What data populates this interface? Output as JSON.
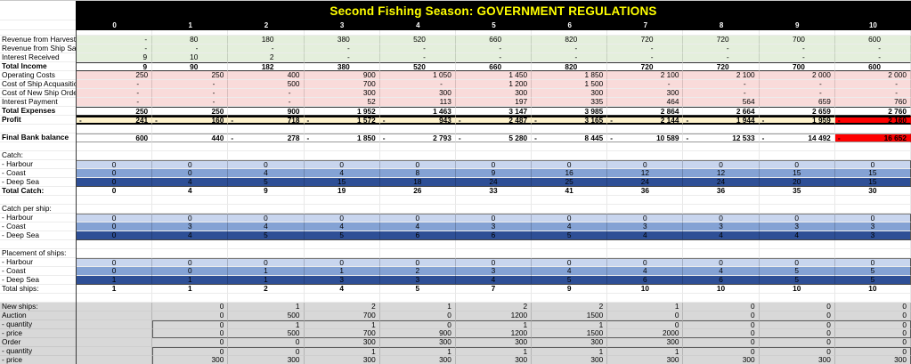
{
  "header": {
    "title": "Second Fishing Season: GOVERNMENT REGULATIONS",
    "columns": [
      "0",
      "1",
      "2",
      "3",
      "4",
      "5",
      "6",
      "7",
      "8",
      "9",
      "10"
    ]
  },
  "colors": {
    "header_bg": "#000000",
    "title_text": "#ffff00",
    "income_green": "#e4efdc",
    "expense_pink": "#f9dbda",
    "profit_yellow": "#fef2cb",
    "alert_red": "#fe0000",
    "harbour_blue": "#c8d5ee",
    "coast_blue": "#84a2d4",
    "deep_sea_blue": "#2e4f96",
    "purchase_grey": "#d8d8d8"
  },
  "sheet": {
    "rows": [
      {
        "name": "column-numbers",
        "style": "colhead",
        "label": "",
        "values": [
          "0",
          "1",
          "2",
          "3",
          "4",
          "5",
          "6",
          "7",
          "8",
          "9",
          "10"
        ]
      },
      {
        "name": "spacer-top",
        "style": "blanksm",
        "label": ""
      },
      {
        "name": "revenue-from-harvest",
        "style": "green",
        "label": "Revenue from Harvest",
        "values": [
          "-",
          "80",
          "180",
          "380",
          "520",
          "660",
          "820",
          "720",
          "720",
          "700",
          "600"
        ]
      },
      {
        "name": "revenue-from-ship-sales",
        "style": "green",
        "label": "Revenue from Ship Sales",
        "values": [
          "-",
          "-",
          "-",
          "-",
          "-",
          "-",
          "-",
          "-",
          "-",
          "-",
          "-"
        ]
      },
      {
        "name": "interest-received",
        "style": "green",
        "label": "Interest Received",
        "values": [
          "9",
          "10",
          "2",
          "-",
          "-",
          "-",
          "-",
          "-",
          "-",
          "-",
          "-"
        ]
      },
      {
        "name": "total-income",
        "style": "total",
        "label": "Total Income",
        "label_bold": true,
        "values": [
          "9",
          "90",
          "182",
          "380",
          "520",
          "660",
          "820",
          "720",
          "720",
          "700",
          "600"
        ]
      },
      {
        "name": "operating-costs",
        "style": "pink",
        "label": "Operating Costs",
        "values": [
          "250",
          "250",
          "400",
          "900",
          "1 050",
          "1 450",
          "1 850",
          "2 100",
          "2 100",
          "2 000",
          "2 000"
        ]
      },
      {
        "name": "cost-of-ship-acquasitions",
        "style": "pink",
        "label": "Cost of Ship Acquasitions",
        "values": [
          "-",
          "-",
          "500",
          "700",
          "-",
          "1 200",
          "1 500",
          "-",
          "-",
          "-",
          "-"
        ]
      },
      {
        "name": "cost-of-new-ship-orders",
        "style": "pink",
        "label": "Cost of New Ship Orders",
        "values": [
          "-",
          "-",
          "-",
          "300",
          "300",
          "300",
          "300",
          "300",
          "-",
          "-",
          "-"
        ]
      },
      {
        "name": "interest-payment",
        "style": "pink",
        "label": "Interest Payment",
        "values": [
          "-",
          "-",
          "-",
          "52",
          "113",
          "197",
          "335",
          "464",
          "564",
          "659",
          "760"
        ]
      },
      {
        "name": "total-expenses",
        "style": "totalx",
        "label": "Total Expenses",
        "label_bold": true,
        "values": [
          "250",
          "250",
          "900",
          "1 952",
          "1 463",
          "3 147",
          "3 985",
          "2 864",
          "2 664",
          "2 659",
          "2 760"
        ]
      },
      {
        "name": "profit",
        "style": "profit",
        "label": "Profit",
        "label_bold": true,
        "values": [
          "-241",
          "-160",
          "-718",
          "-1 572",
          "-943",
          "-2 487",
          "-3 165",
          "-2 144",
          "-1 944",
          "-1 959",
          "-2 160"
        ],
        "red": [
          10
        ]
      },
      {
        "name": "spacer-1",
        "style": "blank",
        "label": ""
      },
      {
        "name": "final-bank-balance",
        "style": "bank",
        "label": "Final Bank balance",
        "label_bold": true,
        "values": [
          "600",
          "440",
          "-278",
          "-1 850",
          "-2 793",
          "-5 280",
          "-8 445",
          "-10 589",
          "-12 533",
          "-14 492",
          "-16 652"
        ],
        "red": [
          10
        ]
      },
      {
        "name": "spacer-2",
        "style": "blank",
        "label": ""
      },
      {
        "name": "catch-header",
        "style": "section",
        "label": "Catch:"
      },
      {
        "name": "catch-harbour",
        "style": "blue1",
        "label": "- Harbour",
        "values": [
          "0",
          "0",
          "0",
          "0",
          "0",
          "0",
          "0",
          "0",
          "0",
          "0",
          "0"
        ]
      },
      {
        "name": "catch-coast",
        "style": "blue2",
        "label": "- Coast",
        "values": [
          "0",
          "0",
          "4",
          "4",
          "8",
          "9",
          "16",
          "12",
          "12",
          "15",
          "15"
        ]
      },
      {
        "name": "catch-deep-sea",
        "style": "blue3",
        "label": "- Deep Sea",
        "values": [
          "0",
          "4",
          "5",
          "15",
          "18",
          "24",
          "25",
          "24",
          "24",
          "20",
          "15"
        ]
      },
      {
        "name": "total-catch",
        "style": "tblue",
        "label": "Total Catch:",
        "label_bold": true,
        "values": [
          "0",
          "4",
          "9",
          "19",
          "26",
          "33",
          "41",
          "36",
          "36",
          "35",
          "30"
        ]
      },
      {
        "name": "spacer-3",
        "style": "blank",
        "label": ""
      },
      {
        "name": "catch-per-ship-header",
        "style": "section",
        "label": "Catch per ship:"
      },
      {
        "name": "catch-per-ship-harbour",
        "style": "blue1",
        "label": "- Harbour",
        "values": [
          "0",
          "0",
          "0",
          "0",
          "0",
          "0",
          "0",
          "0",
          "0",
          "0",
          "0"
        ]
      },
      {
        "name": "catch-per-ship-coast",
        "style": "blue2",
        "label": "- Coast",
        "values": [
          "0",
          "3",
          "4",
          "4",
          "4",
          "3",
          "4",
          "3",
          "3",
          "3",
          "3"
        ]
      },
      {
        "name": "catch-per-ship-deep-sea",
        "style": "blue3",
        "label": "- Deep Sea",
        "values": [
          "0",
          "4",
          "5",
          "5",
          "6",
          "6",
          "5",
          "4",
          "4",
          "4",
          "3"
        ]
      },
      {
        "name": "spacer-4",
        "style": "blank",
        "label": ""
      },
      {
        "name": "placement-header",
        "style": "section",
        "label": "Placement of ships:"
      },
      {
        "name": "placement-harbour",
        "style": "blue1",
        "label": "- Harbour",
        "values": [
          "0",
          "0",
          "0",
          "0",
          "0",
          "0",
          "0",
          "0",
          "0",
          "0",
          "0"
        ]
      },
      {
        "name": "placement-coast",
        "style": "blue2",
        "label": "- Coast",
        "values": [
          "0",
          "0",
          "1",
          "1",
          "2",
          "3",
          "4",
          "4",
          "4",
          "5",
          "5"
        ]
      },
      {
        "name": "placement-deep-sea",
        "style": "blue3",
        "label": "- Deep Sea",
        "values": [
          "1",
          "1",
          "1",
          "3",
          "3",
          "4",
          "5",
          "6",
          "6",
          "5",
          "5"
        ]
      },
      {
        "name": "total-ships",
        "style": "tships",
        "label": "Total ships:",
        "values": [
          "1",
          "1",
          "2",
          "4",
          "5",
          "7",
          "9",
          "10",
          "10",
          "10",
          "10"
        ]
      },
      {
        "name": "spacer-5",
        "style": "blank",
        "label": ""
      },
      {
        "name": "new-ships",
        "style": "grey",
        "label": "New ships:",
        "values": [
          "",
          "0",
          "1",
          "2",
          "1",
          "2",
          "2",
          "1",
          "0",
          "0",
          "0"
        ]
      },
      {
        "name": "auction",
        "style": "grey",
        "label": "Auction",
        "values": [
          "",
          "0",
          "500",
          "700",
          "0",
          "1200",
          "1500",
          "0",
          "0",
          "0",
          "0"
        ]
      },
      {
        "name": "auction-quantity",
        "style": "grey boxt",
        "label": "- quantity",
        "values": [
          "",
          "0",
          "1",
          "1",
          "0",
          "1",
          "1",
          "0",
          "0",
          "0",
          "0"
        ]
      },
      {
        "name": "auction-price",
        "style": "grey boxb",
        "label": "- price",
        "values": [
          "",
          "0",
          "500",
          "700",
          "900",
          "1200",
          "1500",
          "2000",
          "0",
          "0",
          "0"
        ]
      },
      {
        "name": "order",
        "style": "grey",
        "label": "Order",
        "values": [
          "",
          "0",
          "0",
          "300",
          "300",
          "300",
          "300",
          "300",
          "0",
          "0",
          "0"
        ]
      },
      {
        "name": "order-quantity",
        "style": "grey boxt",
        "label": "- quantity",
        "values": [
          "",
          "0",
          "0",
          "1",
          "1",
          "1",
          "1",
          "1",
          "0",
          "0",
          "0"
        ]
      },
      {
        "name": "order-price",
        "style": "grey boxb",
        "label": "- price",
        "values": [
          "",
          "300",
          "300",
          "300",
          "300",
          "300",
          "300",
          "300",
          "300",
          "300",
          "300"
        ]
      }
    ]
  }
}
